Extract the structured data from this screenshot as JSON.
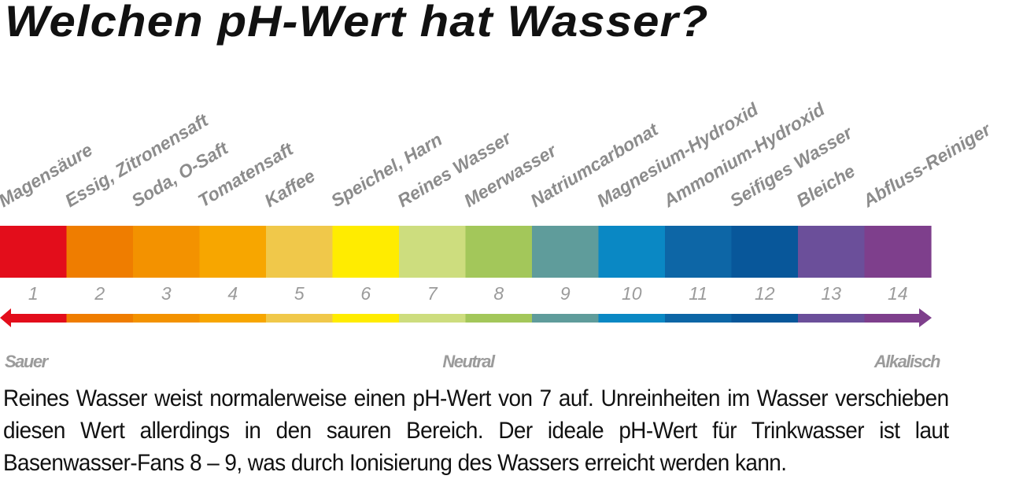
{
  "title": "Welchen pH-Wert hat Wasser?",
  "scale": {
    "substances": [
      "Magensäure",
      "Essig, Zitronensaft",
      "Soda, O-Saft",
      "Tomatensaft",
      "Kaffee",
      "Speichel, Harn",
      "Reines Wasser",
      "Meerwasser",
      "Natriumcarbonat",
      "Magnesium-Hydroxid",
      "Ammonium-Hydroxid",
      "Seifiges Wasser",
      "Bleiche",
      "Abfluss-Reiniger"
    ],
    "ph_values": [
      "1",
      "2",
      "3",
      "4",
      "5",
      "6",
      "7",
      "8",
      "9",
      "10",
      "11",
      "12",
      "13",
      "14"
    ],
    "colors": [
      "#e30d1b",
      "#ef7d00",
      "#f39200",
      "#f7a600",
      "#f0c84a",
      "#ffec00",
      "#cddd7e",
      "#a3c75a",
      "#5f9c9b",
      "#0a88c4",
      "#0d66a6",
      "#08579a",
      "#6b4f9a",
      "#7e3f8c"
    ],
    "axis_labels": {
      "left": "Sauer",
      "center": "Neutral",
      "right": "Alkalisch"
    }
  },
  "description": "Reines Wasser weist normalerweise einen pH-Wert von 7 auf. Unreinheiten im Wasser verschieben diesen Wert allerdings in den sauren Bereich. Der ideale pH-Wert für Trinkwasser ist laut Basenwasser-Fans 8 – 9, was durch Ionisierung des Wassers erreicht werden kann."
}
